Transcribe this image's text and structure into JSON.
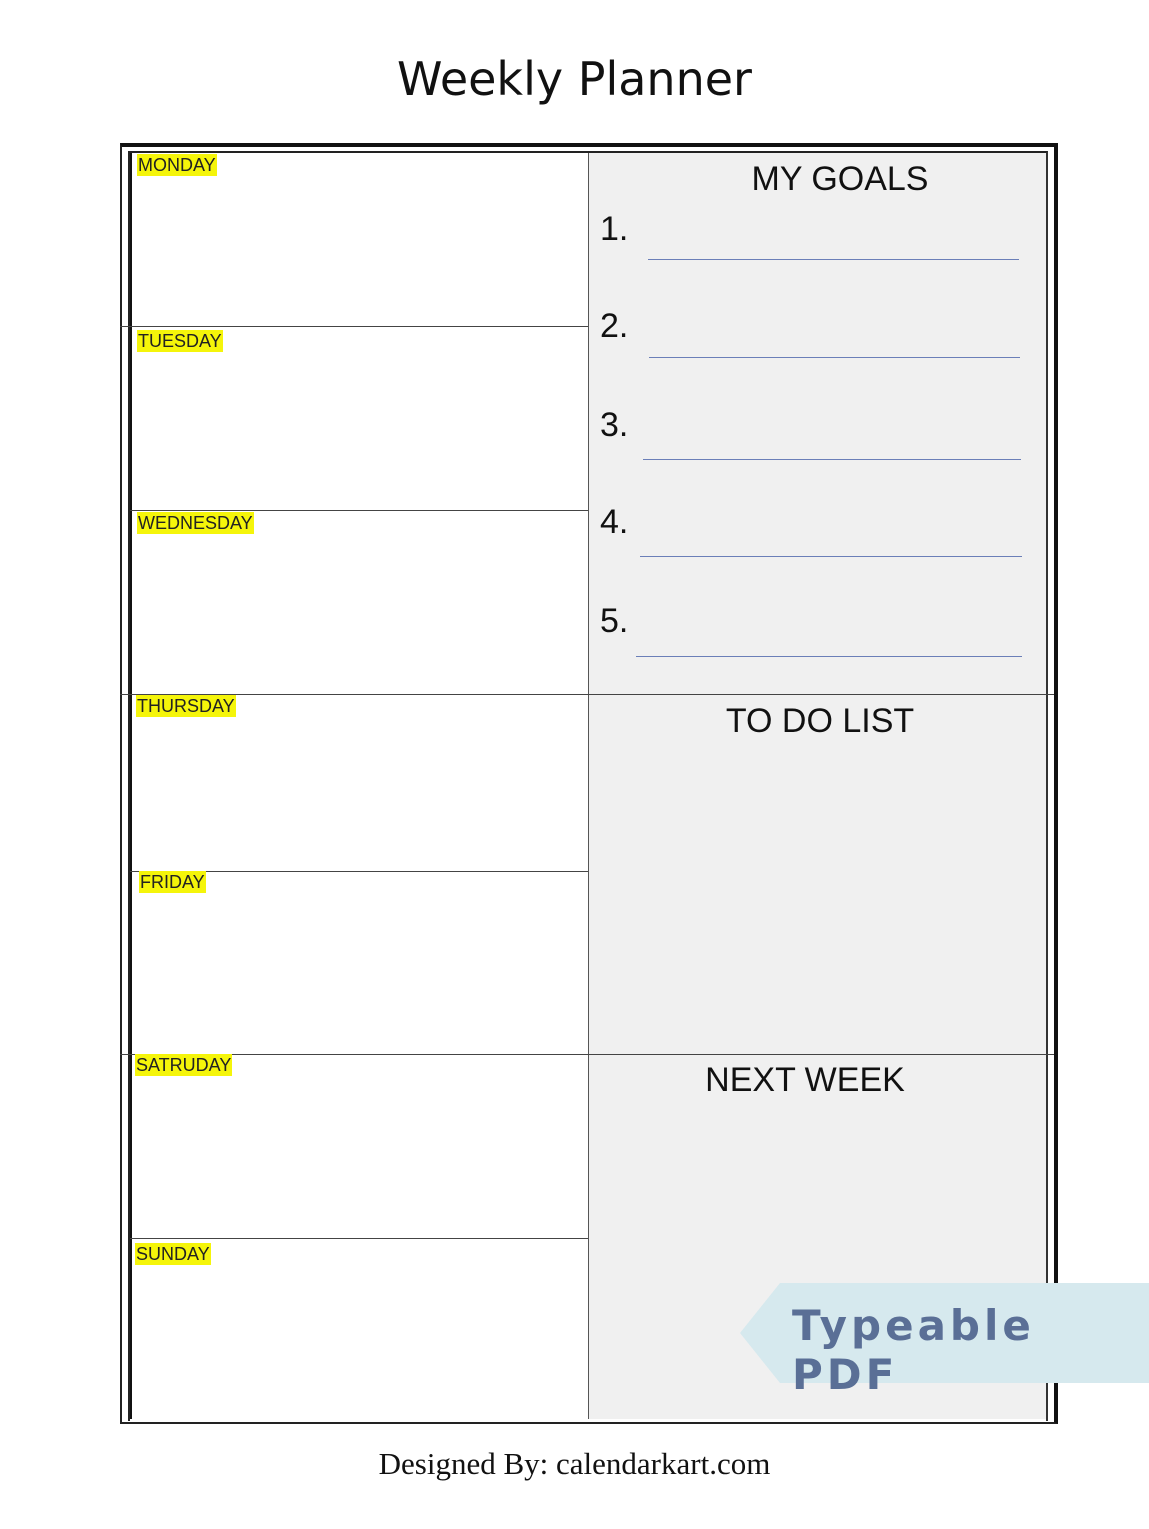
{
  "title": "Weekly Planner",
  "days": [
    "MONDAY",
    "TUESDAY",
    "WEDNESDAY",
    "THURSDAY",
    "FRIDAY",
    "SATRUDAY",
    "SUNDAY"
  ],
  "goals": {
    "title": "MY GOALS",
    "numbers": [
      "1.",
      "2.",
      "3.",
      "4.",
      "5."
    ]
  },
  "todo": {
    "title": "TO DO LIST"
  },
  "next_week": {
    "title": "NEXT WEEK"
  },
  "badge": {
    "label": "Typeable PDF",
    "bg_color": "#d6e9ee",
    "text_color": "#5a6f96"
  },
  "footer": "Designed By: calendarkart.com",
  "colors": {
    "highlight": "#f5f50a",
    "goal_line": "#6b7fb8",
    "panel": "#f0f0f0"
  }
}
